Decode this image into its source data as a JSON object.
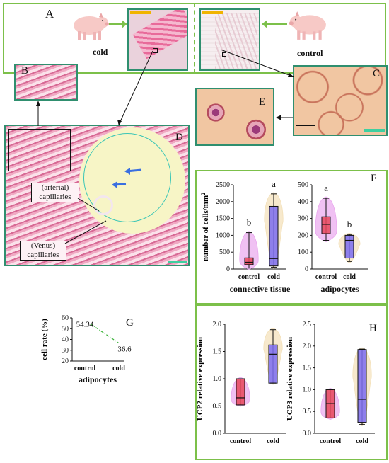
{
  "panel_letters": {
    "a": "A",
    "b": "B",
    "c": "C",
    "d": "D",
    "e": "E",
    "f": "F",
    "g": "G",
    "h": "H"
  },
  "top": {
    "cold_label": "cold",
    "control_label": "control"
  },
  "panel_d": {
    "arterial": "(arterial)\ncapillaries",
    "venus": "(Venus)\ncapillaries"
  },
  "colors": {
    "frame": "#7cc04a",
    "control_box": "#e8475b",
    "cold_box": "#7b6cf0",
    "violin_pink": "#e9a6ee",
    "violin_tan": "#f3e0b8"
  },
  "chart_data": [
    {
      "id": "F-left",
      "type": "box-violin",
      "categories": [
        "control",
        "cold"
      ],
      "ylabel": "number of cells/mm2",
      "xlabel": "connective tissue",
      "ylim": [
        0,
        2500
      ],
      "yticks": [
        0,
        500,
        1000,
        1500,
        2000,
        2500
      ],
      "boxes": [
        {
          "category": "control",
          "min": 30,
          "q1": 130,
          "median": 200,
          "q3": 330,
          "max": 1080,
          "letter": "b"
        },
        {
          "category": "cold",
          "min": 50,
          "q1": 90,
          "median": 310,
          "q3": 1860,
          "max": 2230,
          "letter": "a"
        }
      ]
    },
    {
      "id": "F-right",
      "type": "box-violin",
      "categories": [
        "control",
        "cold"
      ],
      "xlabel": "adipocytes",
      "ylim": [
        0,
        500
      ],
      "yticks": [
        0,
        100,
        200,
        300,
        400,
        500
      ],
      "boxes": [
        {
          "category": "control",
          "min": 170,
          "q1": 210,
          "median": 265,
          "q3": 310,
          "max": 420,
          "letter": "a"
        },
        {
          "category": "cold",
          "min": 45,
          "q1": 65,
          "median": 170,
          "q3": 200,
          "max": 205,
          "letter": "b"
        }
      ]
    },
    {
      "id": "G",
      "type": "line",
      "categories": [
        "control",
        "cold"
      ],
      "values": [
        54.34,
        36.6
      ],
      "data_labels": [
        "54.34",
        "36.6"
      ],
      "ylabel": "cell rate (%)",
      "xlabel": "adipocytes",
      "ylim": [
        20,
        60
      ],
      "yticks": [
        20,
        30,
        40,
        50,
        60
      ]
    },
    {
      "id": "H-left",
      "type": "box-violin",
      "categories": [
        "control",
        "cold"
      ],
      "ylabel": "UCP2 relative expression",
      "ylim": [
        0,
        2.0
      ],
      "yticks": [
        "0.0",
        "0.5",
        "1.0",
        "1.5",
        "2.0"
      ],
      "boxes": [
        {
          "category": "control",
          "min": 0.52,
          "q1": 0.52,
          "median": 0.65,
          "q3": 1.0,
          "max": 1.0
        },
        {
          "category": "cold",
          "min": 0.92,
          "q1": 0.92,
          "median": 1.45,
          "q3": 1.62,
          "max": 1.9
        }
      ]
    },
    {
      "id": "H-right",
      "type": "box-violin",
      "categories": [
        "control",
        "cold"
      ],
      "ylabel": "UCP3 relative expression",
      "ylim": [
        0,
        2.5
      ],
      "yticks": [
        "0.0",
        "0.5",
        "1.0",
        "1.5",
        "2.0",
        "2.5"
      ],
      "boxes": [
        {
          "category": "control",
          "min": 0.35,
          "q1": 0.35,
          "median": 0.68,
          "q3": 1.0,
          "max": 1.0
        },
        {
          "category": "cold",
          "min": 0.2,
          "q1": 0.25,
          "median": 0.78,
          "q3": 1.92,
          "max": 1.93
        }
      ]
    }
  ]
}
